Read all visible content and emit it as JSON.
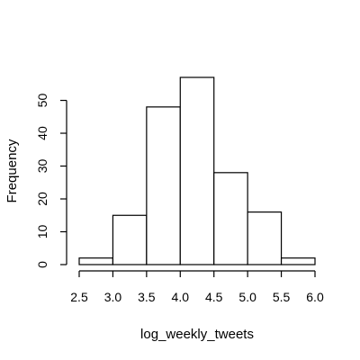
{
  "chart_data": {
    "type": "bar",
    "subtype": "histogram",
    "title": "",
    "xlabel": "log_weekly_tweets",
    "ylabel": "Frequency",
    "bins": [
      {
        "x0": 2.5,
        "x1": 3.0,
        "count": 2
      },
      {
        "x0": 3.0,
        "x1": 3.5,
        "count": 15
      },
      {
        "x0": 3.5,
        "x1": 4.0,
        "count": 48
      },
      {
        "x0": 4.0,
        "x1": 4.5,
        "count": 57
      },
      {
        "x0": 4.5,
        "x1": 5.0,
        "count": 28
      },
      {
        "x0": 5.0,
        "x1": 5.5,
        "count": 16
      },
      {
        "x0": 5.5,
        "x1": 6.0,
        "count": 2
      }
    ],
    "xlim": [
      2.5,
      6.0
    ],
    "ylim": [
      0,
      57
    ],
    "xticks": [
      "2.5",
      "3.0",
      "3.5",
      "4.0",
      "4.5",
      "5.0",
      "5.5",
      "6.0"
    ],
    "yticks": [
      "0",
      "10",
      "20",
      "30",
      "40",
      "50"
    ],
    "grid": false,
    "bar_fill": "#ffffff",
    "bar_stroke": "#000000"
  }
}
